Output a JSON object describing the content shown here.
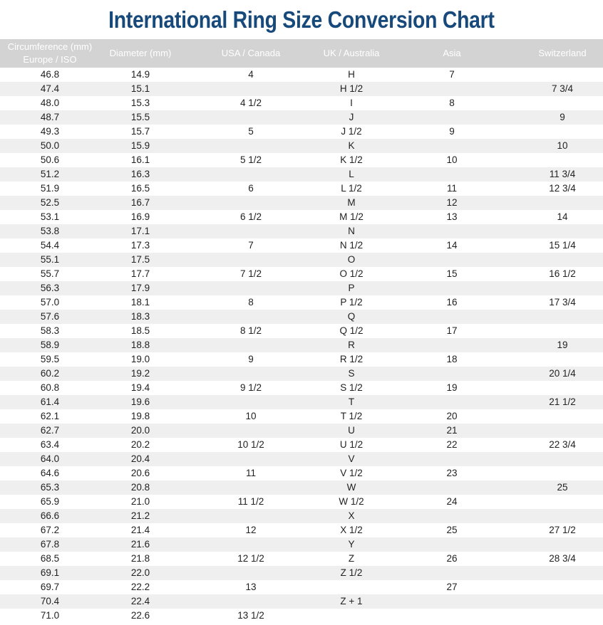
{
  "title": "International Ring Size Conversion Chart",
  "table": {
    "headers": [
      "Circumference (mm) Europe / ISO",
      "Diameter (mm)",
      "USA / Canada",
      "UK / Australia",
      "Asia",
      "Switzerland"
    ],
    "header_lines": [
      "Circumference (mm)",
      "Europe / ISO"
    ],
    "rows": [
      [
        "46.8",
        "14.9",
        "4",
        "H",
        "7",
        ""
      ],
      [
        "47.4",
        "15.1",
        "",
        "H 1/2",
        "",
        "7 3/4"
      ],
      [
        "48.0",
        "15.3",
        "4 1/2",
        "I",
        "8",
        ""
      ],
      [
        "48.7",
        "15.5",
        "",
        "J",
        "",
        "9"
      ],
      [
        "49.3",
        "15.7",
        "5",
        "J 1/2",
        "9",
        ""
      ],
      [
        "50.0",
        "15.9",
        "",
        "K",
        "",
        "10"
      ],
      [
        "50.6",
        "16.1",
        "5 1/2",
        "K 1/2",
        "10",
        ""
      ],
      [
        "51.2",
        "16.3",
        "",
        "L",
        "",
        "11 3/4"
      ],
      [
        "51.9",
        "16.5",
        "6",
        "L 1/2",
        "11",
        "12 3/4"
      ],
      [
        "52.5",
        "16.7",
        "",
        "M",
        "12",
        ""
      ],
      [
        "53.1",
        "16.9",
        "6 1/2",
        "M 1/2",
        "13",
        "14"
      ],
      [
        "53.8",
        "17.1",
        "",
        "N",
        "",
        ""
      ],
      [
        "54.4",
        "17.3",
        "7",
        "N 1/2",
        "14",
        "15 1/4"
      ],
      [
        "55.1",
        "17.5",
        "",
        "O",
        "",
        ""
      ],
      [
        "55.7",
        "17.7",
        "7 1/2",
        "O 1/2",
        "15",
        "16 1/2"
      ],
      [
        "56.3",
        "17.9",
        "",
        "P",
        "",
        ""
      ],
      [
        "57.0",
        "18.1",
        "8",
        "P 1/2",
        "16",
        "17 3/4"
      ],
      [
        "57.6",
        "18.3",
        "",
        "Q",
        "",
        ""
      ],
      [
        "58.3",
        "18.5",
        "8 1/2",
        "Q 1/2",
        "17",
        ""
      ],
      [
        "58.9",
        "18.8",
        "",
        "R",
        "",
        "19"
      ],
      [
        "59.5",
        "19.0",
        "9",
        "R 1/2",
        "18",
        ""
      ],
      [
        "60.2",
        "19.2",
        "",
        "S",
        "",
        "20 1/4"
      ],
      [
        "60.8",
        "19.4",
        "9 1/2",
        "S 1/2",
        "19",
        ""
      ],
      [
        "61.4",
        "19.6",
        "",
        "T",
        "",
        "21 1/2"
      ],
      [
        "62.1",
        "19.8",
        "10",
        "T 1/2",
        "20",
        ""
      ],
      [
        "62.7",
        "20.0",
        "",
        "U",
        "21",
        ""
      ],
      [
        "63.4",
        "20.2",
        "10 1/2",
        "U 1/2",
        "22",
        "22 3/4"
      ],
      [
        "64.0",
        "20.4",
        "",
        "V",
        "",
        ""
      ],
      [
        "64.6",
        "20.6",
        "11",
        "V 1/2",
        "23",
        ""
      ],
      [
        "65.3",
        "20.8",
        "",
        "W",
        "",
        "25"
      ],
      [
        "65.9",
        "21.0",
        "11 1/2",
        "W 1/2",
        "24",
        ""
      ],
      [
        "66.6",
        "21.2",
        "",
        "X",
        "",
        ""
      ],
      [
        "67.2",
        "21.4",
        "12",
        "X 1/2",
        "25",
        "27 1/2"
      ],
      [
        "67.8",
        "21.6",
        "",
        "Y",
        "",
        ""
      ],
      [
        "68.5",
        "21.8",
        "12 1/2",
        "Z",
        "26",
        "28 3/4"
      ],
      [
        "69.1",
        "22.0",
        "",
        "Z 1/2",
        "",
        ""
      ],
      [
        "69.7",
        "22.2",
        "13",
        "",
        "27",
        ""
      ],
      [
        "70.4",
        "22.4",
        "",
        "Z + 1",
        "",
        ""
      ],
      [
        "71.0",
        "22.6",
        "13 1/2",
        "",
        "",
        ""
      ]
    ]
  },
  "colors": {
    "title": "#17497a",
    "header_bg": "#d3d3d3",
    "stripe": "#efefef"
  }
}
